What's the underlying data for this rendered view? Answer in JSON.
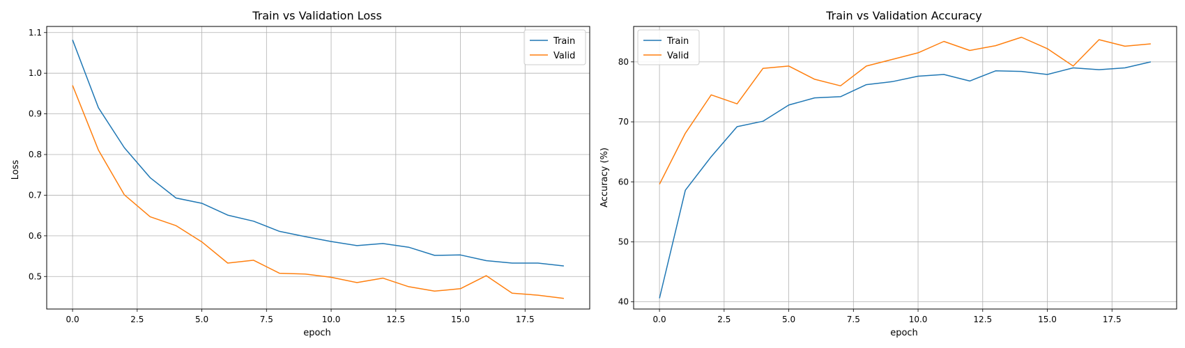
{
  "colors": {
    "train": "#1f77b4",
    "valid": "#ff7f0e",
    "grid": "#b0b0b0"
  },
  "chart_data": [
    {
      "type": "line",
      "title": "Train vs Validation Loss",
      "xlabel": "epoch",
      "ylabel": "Loss",
      "xlim": [
        -1,
        20
      ],
      "ylim": [
        0.42,
        1.115
      ],
      "xticks": [
        0,
        2.5,
        5,
        7.5,
        10,
        12.5,
        15,
        17.5
      ],
      "xtick_labels": [
        "0.0",
        "2.5",
        "5.0",
        "7.5",
        "10.0",
        "12.5",
        "15.0",
        "17.5"
      ],
      "yticks": [
        0.5,
        0.6,
        0.7,
        0.8,
        0.9,
        1.0,
        1.1
      ],
      "ytick_labels": [
        "0.5",
        "0.6",
        "0.7",
        "0.8",
        "0.9",
        "1.0",
        "1.1"
      ],
      "grid": true,
      "legend": "top-right",
      "x": [
        0,
        1,
        2,
        3,
        4,
        5,
        6,
        7,
        8,
        9,
        10,
        11,
        12,
        13,
        14,
        15,
        16,
        17,
        18,
        19
      ],
      "series": [
        {
          "name": "Train",
          "color": "#1f77b4",
          "values": [
            1.082,
            0.915,
            0.817,
            0.743,
            0.693,
            0.68,
            0.651,
            0.636,
            0.611,
            0.598,
            0.586,
            0.576,
            0.581,
            0.572,
            0.552,
            0.553,
            0.539,
            0.533,
            0.533,
            0.526
          ]
        },
        {
          "name": "Valid",
          "color": "#ff7f0e",
          "values": [
            0.97,
            0.811,
            0.701,
            0.647,
            0.625,
            0.585,
            0.533,
            0.54,
            0.508,
            0.506,
            0.498,
            0.485,
            0.496,
            0.475,
            0.464,
            0.47,
            0.502,
            0.459,
            0.454,
            0.446
          ]
        }
      ]
    },
    {
      "type": "line",
      "title": "Train vs Validation Accuracy",
      "xlabel": "epoch",
      "ylabel": "Accuracy (%)",
      "xlim": [
        -1,
        20
      ],
      "ylim": [
        38.8,
        85.9
      ],
      "xticks": [
        0,
        2.5,
        5,
        7.5,
        10,
        12.5,
        15,
        17.5
      ],
      "xtick_labels": [
        "0.0",
        "2.5",
        "5.0",
        "7.5",
        "10.0",
        "12.5",
        "15.0",
        "17.5"
      ],
      "yticks": [
        40,
        50,
        60,
        70,
        80
      ],
      "ytick_labels": [
        "40",
        "50",
        "60",
        "70",
        "80"
      ],
      "grid": true,
      "legend": "top-left",
      "x": [
        0,
        1,
        2,
        3,
        4,
        5,
        6,
        7,
        8,
        9,
        10,
        11,
        12,
        13,
        14,
        15,
        16,
        17,
        18,
        19
      ],
      "series": [
        {
          "name": "Train",
          "color": "#1f77b4",
          "values": [
            40.6,
            58.6,
            64.2,
            69.2,
            70.1,
            72.8,
            74.0,
            74.2,
            76.2,
            76.7,
            77.6,
            77.9,
            76.8,
            78.5,
            78.4,
            77.9,
            79.0,
            78.7,
            79.0,
            80.0
          ]
        },
        {
          "name": "Valid",
          "color": "#ff7f0e",
          "values": [
            59.6,
            68.1,
            74.5,
            73.0,
            78.9,
            79.3,
            77.1,
            76.0,
            79.3,
            80.4,
            81.5,
            83.4,
            81.9,
            82.7,
            84.1,
            82.2,
            79.3,
            83.7,
            82.6,
            83.0
          ]
        }
      ]
    }
  ]
}
